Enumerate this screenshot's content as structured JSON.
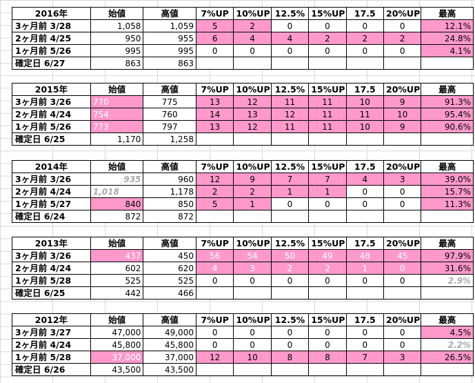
{
  "headers": [
    "始値",
    "高値",
    "7%UP",
    "10%UP",
    "12.5%",
    "15%UP",
    "17.5",
    "20%UP",
    "最高"
  ],
  "pink": "#ff99cc",
  "blocks": [
    {
      "year": "2016年",
      "rows": [
        {
          "label": "3ヶ月前 3/28",
          "start": "1,058",
          "high": "1,059",
          "c": [
            "5",
            "2",
            "0",
            "0",
            "0",
            "0"
          ],
          "max": "12.1%"
        },
        {
          "label": "2ヶ月前 4/25",
          "start": "950",
          "high": "955",
          "c": [
            "6",
            "4",
            "4",
            "2",
            "2",
            "2"
          ],
          "max": "24.8%"
        },
        {
          "label": "1ヶ月前 5/26",
          "start": "995",
          "high": "995",
          "c": [
            "0",
            "0",
            "0",
            "0",
            "0",
            "0"
          ],
          "max": "4.1%"
        },
        {
          "label": "確定日 6/27",
          "start": "863",
          "high": "863"
        }
      ]
    },
    {
      "year": "2015年",
      "rows": [
        {
          "label": "3ヶ月前 3/26",
          "start": "770",
          "high": "775",
          "c": [
            "13",
            "12",
            "11",
            "11",
            "10",
            "9"
          ],
          "max": "91.3%"
        },
        {
          "label": "2ヶ月前 4/24",
          "start": "754",
          "high": "760",
          "c": [
            "14",
            "13",
            "12",
            "11",
            "11",
            "10"
          ],
          "max": "95.4%"
        },
        {
          "label": "1ヶ月前 5/26",
          "start": "773",
          "high": "797",
          "c": [
            "13",
            "12",
            "11",
            "11",
            "10",
            "9"
          ],
          "max": "90.6%"
        },
        {
          "label": "確定日 6/25",
          "start": "1,170",
          "high": "1,258"
        }
      ]
    },
    {
      "year": "2014年",
      "rows": [
        {
          "label": "3ヶ月前 3/26",
          "start": "935",
          "high": "960",
          "c": [
            "12",
            "9",
            "7",
            "7",
            "4",
            "3"
          ],
          "max": "39.0%"
        },
        {
          "label": "2ヶ月前 4/24",
          "start": "1,018",
          "high": "1,178",
          "c": [
            "2",
            "2",
            "1",
            "1",
            "0",
            "0"
          ],
          "max": "15.7%"
        },
        {
          "label": "1ヶ月前 5/27",
          "start": "840",
          "high": "850",
          "c": [
            "5",
            "1",
            "0",
            "0",
            "0",
            "0"
          ],
          "max": "11.3%"
        },
        {
          "label": "確定日 6/24",
          "start": "872",
          "high": "872"
        }
      ]
    },
    {
      "year": "2013年",
      "rows": [
        {
          "label": "3ヶ月前 3/26",
          "start": "437",
          "high": "450",
          "c": [
            "56",
            "54",
            "50",
            "49",
            "48",
            "45"
          ],
          "max": "97.9%"
        },
        {
          "label": "2ヶ月前 4/24",
          "start": "602",
          "high": "620",
          "c": [
            "4",
            "3",
            "2",
            "2",
            "1",
            "0"
          ],
          "max": "31.6%"
        },
        {
          "label": "1ヶ月前 5/28",
          "start": "525",
          "high": "525",
          "c": [
            "0",
            "0",
            "0",
            "0",
            "0",
            "0"
          ],
          "max": "2.9%"
        },
        {
          "label": "確定日 6/25",
          "start": "442",
          "high": "466"
        }
      ]
    },
    {
      "year": "2012年",
      "rows": [
        {
          "label": "3ヶ月前 3/27",
          "start": "47,000",
          "high": "49,000",
          "c": [
            "0",
            "0",
            "0",
            "0",
            "0",
            "0"
          ],
          "max": "4.5%"
        },
        {
          "label": "2ヶ月前 4/24",
          "start": "45,800",
          "high": "45,800",
          "c": [
            "0",
            "0",
            "0",
            "0",
            "0",
            "0"
          ],
          "max": "2.2%"
        },
        {
          "label": "1ヶ月前 5/28",
          "start": "37,000",
          "high": "37,000",
          "c": [
            "12",
            "10",
            "8",
            "8",
            "7",
            "3"
          ],
          "max": "26.5%"
        },
        {
          "label": "確定日 6/26",
          "start": "43,500",
          "high": "43,500"
        }
      ]
    }
  ]
}
